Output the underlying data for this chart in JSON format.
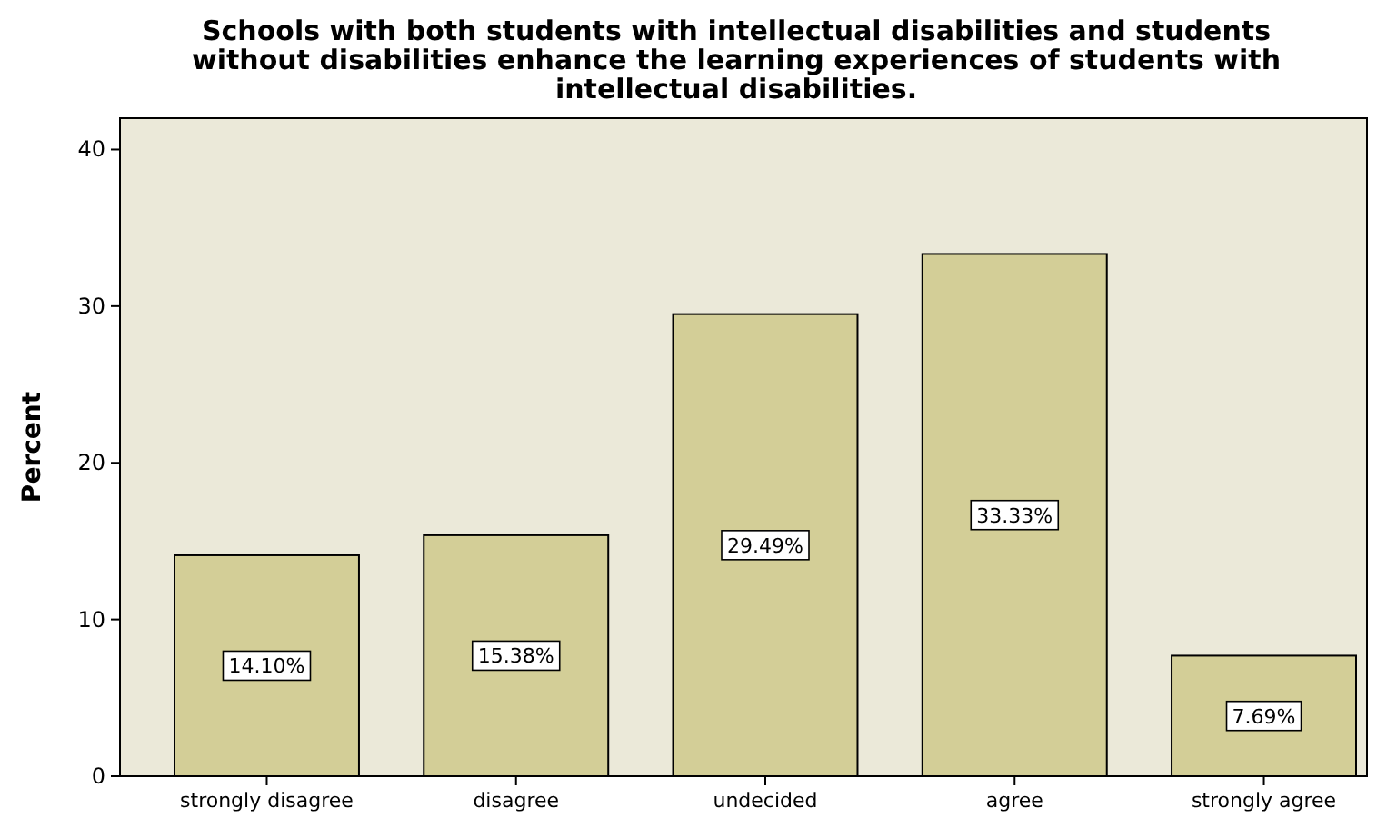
{
  "chart_data": {
    "type": "bar",
    "title": "Schools with both students with intellectual disabilities and students without disabilities enhance the learning experiences of students with intellectual disabilities.",
    "ylabel": "Percent",
    "categories": [
      "strongly disagree",
      "disagree",
      "undecided",
      "agree",
      "strongly agree"
    ],
    "values": [
      14.1,
      15.38,
      29.49,
      33.33,
      7.69
    ],
    "value_labels": [
      "14.10%",
      "15.38%",
      "29.49%",
      "33.33%",
      "7.69%"
    ],
    "color": "#d3ce97",
    "ylim": [
      0,
      42
    ],
    "yticks": [
      0,
      10,
      20,
      30,
      40
    ],
    "grid": false
  }
}
